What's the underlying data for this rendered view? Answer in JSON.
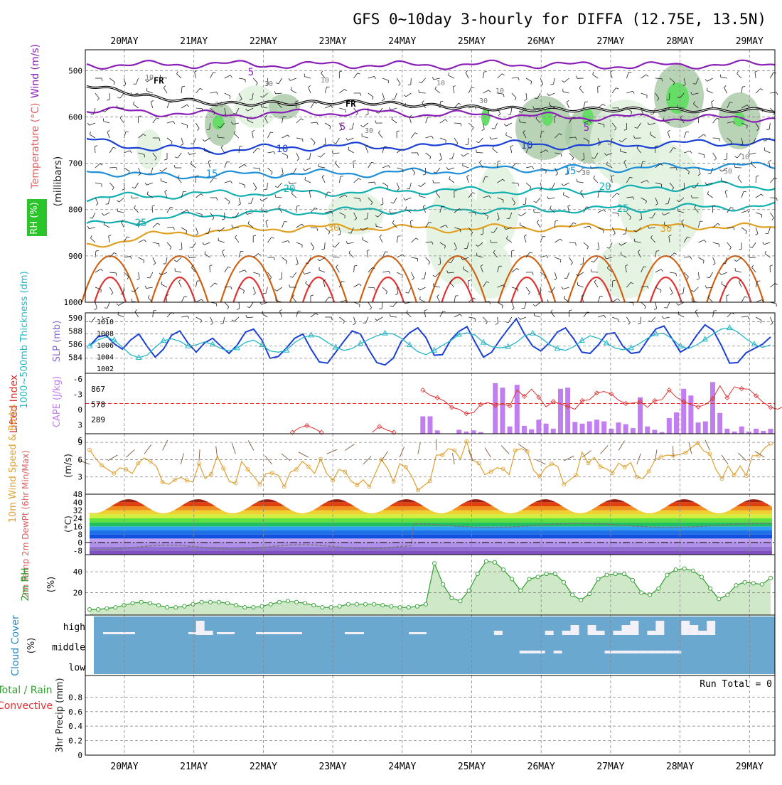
{
  "header": {
    "title": "GFS 0~10day 3-hourly for DIFFA (12.75E, 13.5N)"
  },
  "colors": {
    "frame": "#000000",
    "grid": "#888888",
    "purple": "#8a1fb8",
    "blue": "#1a3fd6",
    "lightblue": "#1e8fd8",
    "teal": "#12b0b0",
    "orange": "#e0a020",
    "darkorange": "#d06010",
    "red": "#e03030",
    "rh_light": "#dff0dc",
    "rh_mid": "#a8c8a4",
    "rh_dark": "#6f8f6c",
    "green": "#2ea02e",
    "slp_blue": "#1a3fd6",
    "thick_cyan": "#22b8c8",
    "cape_purple": "#c07ef0",
    "li_red": "#e03030",
    "wind_orange": "#e0a030",
    "dewpt": "#777777",
    "cloud_blue": "#6aa8d0",
    "cloud_white": "#f4f0f8"
  },
  "chart_data": [
    {
      "type": "line",
      "panel": "upper-air cross section",
      "x": [
        "20MAY",
        "21MAY",
        "22MAY",
        "23MAY",
        "24MAY",
        "25MAY",
        "26MAY",
        "27MAY",
        "28MAY",
        "29MAY"
      ],
      "ylabel_parts": [
        "Wind (m/s)",
        "Temperature (°C)",
        "RH (%)"
      ],
      "yunit_label": "(millibars)",
      "ylim": [
        1000,
        455
      ],
      "yticks": [
        500,
        600,
        700,
        800,
        900,
        1000
      ],
      "fr_label": "FR",
      "temp_contours": [
        {
          "label": "5",
          "level_mb": [
            488,
            487,
            486,
            488,
            487,
            489,
            486,
            488,
            490,
            487,
            486
          ]
        },
        {
          "label": "5",
          "level_mb": [
            585,
            590,
            596,
            592,
            590,
            594,
            596,
            600,
            601,
            603,
            602
          ]
        },
        {
          "label": "10",
          "level_mb": [
            650,
            668,
            672,
            665,
            663,
            665,
            658,
            662,
            660,
            656,
            655
          ]
        },
        {
          "label": "15",
          "level_mb": [
            715,
            728,
            725,
            722,
            722,
            718,
            712,
            712,
            710,
            707,
            705
          ]
        },
        {
          "label": "20",
          "level_mb": [
            775,
            770,
            765,
            763,
            762,
            758,
            760,
            760,
            756,
            748,
            750
          ]
        },
        {
          "label": "25",
          "level_mb": [
            835,
            820,
            810,
            805,
            802,
            800,
            800,
            800,
            798,
            795,
            792
          ]
        },
        {
          "label": "30",
          "level_mb": [
            880,
            855,
            845,
            840,
            838,
            842,
            840,
            838,
            840,
            835,
            840
          ]
        }
      ],
      "freezing_level_mb": [
        530,
        558,
        572,
        570,
        568,
        576,
        582,
        584,
        584,
        586,
        585
      ],
      "rh_contour_labels": [
        "10",
        "30",
        "10",
        "30",
        "30",
        "10",
        "30",
        "10",
        "30",
        "10",
        "50"
      ],
      "temp_labels": [
        "5",
        "5",
        "5",
        "10",
        "10",
        "15",
        "15",
        "20",
        "20",
        "25",
        "25",
        "30",
        "30"
      ]
    },
    {
      "type": "line",
      "panel": "thickness and SLP",
      "ylabel": "1000~500mb Thickness (dm)",
      "ylabel2": "SLP (mb)",
      "left_ticks": [
        "590",
        "588",
        "586",
        "584"
      ],
      "right_ticks": [
        "1010",
        "1008",
        "1006",
        "1004",
        "1002"
      ],
      "series": [
        {
          "name": "SLP (mb)",
          "ylim": [
            1002,
            1011
          ],
          "values": [
            1006.0,
            1007.5,
            1007.8,
            1006.4,
            1005.5,
            1007.0,
            1008.0,
            1006.0,
            1004.2,
            1005.5,
            1007.8,
            1008.5,
            1006.5,
            1005.0,
            1006.5,
            1007.3,
            1006.0,
            1004.8,
            1006.2,
            1008.3,
            1008.8,
            1007.0,
            1004.0,
            1004.3,
            1005.7,
            1007.3,
            1008.0,
            1005.5,
            1003.4,
            1003.2,
            1005.0,
            1006.8,
            1008.5,
            1008.0,
            1005.5,
            1003.3,
            1002.9,
            1004.0,
            1006.8,
            1008.2,
            1009.0,
            1007.4,
            1004.5,
            1004.6,
            1007.0,
            1008.4,
            1009.2,
            1006.6,
            1004.2,
            1005.0,
            1007.0,
            1008.8,
            1010.5,
            1008.0,
            1006.0,
            1005.2,
            1006.5,
            1008.3,
            1009.0,
            1007.2,
            1005.0,
            1004.8,
            1006.2,
            1008.0,
            1008.2,
            1006.0,
            1004.8,
            1005.0,
            1007.0,
            1008.8,
            1009.3,
            1007.2,
            1005.0,
            1005.8,
            1007.8,
            1009.5,
            1008.6,
            1006.1,
            1003.2,
            1003.3,
            1004.9,
            1005.6,
            1006.3,
            1007.5
          ]
        },
        {
          "name": "1000-500mb Thickness (dm)",
          "ylim": [
            582,
            591
          ],
          "values": [
            586.0,
            587.0,
            587.5,
            587.0,
            585.8,
            584.6,
            584.1,
            584.5,
            585.8,
            586.9,
            587.2,
            586.8,
            586.0,
            586.2,
            586.7,
            586.3,
            585.6,
            585.2,
            585.7,
            586.6,
            587.0,
            586.2,
            585.2,
            585.0,
            585.3,
            586.6,
            587.4,
            587.8,
            587.5,
            586.6,
            585.8,
            585.3,
            585.6,
            586.4,
            587.1,
            587.7,
            588.1,
            588.0,
            587.3,
            586.2,
            585.1,
            584.6,
            585.3,
            586.1,
            586.9,
            587.9,
            588.2,
            587.8,
            586.6,
            585.9,
            585.7,
            585.9,
            586.6,
            587.7,
            588.1,
            587.4,
            586.3,
            585.6,
            585.3,
            585.9,
            586.9,
            587.7,
            587.3,
            586.5,
            585.7,
            585.4,
            585.7,
            586.4,
            587.3,
            588.0,
            588.1,
            587.2,
            586.0,
            585.6,
            586.2,
            587.1,
            588.0,
            588.8,
            589.0,
            588.3,
            587.2,
            586.3,
            585.8,
            586.2
          ]
        }
      ]
    },
    {
      "type": "bar",
      "panel": "CAPE and Lifted Index",
      "ylabel": "Lifted Index",
      "ylabel2": "CAPE (J/kg)",
      "left_ticks": [
        "-6",
        "-3",
        "0",
        "3",
        "6"
      ],
      "right_ticks": [
        "867",
        "578",
        "289"
      ],
      "series": [
        {
          "name": "CAPE (J/kg)",
          "ylim": [
            0,
            1000
          ],
          "values": [
            0,
            0,
            0,
            0,
            0,
            0,
            0,
            0,
            0,
            0,
            0,
            0,
            0,
            0,
            0,
            0,
            0,
            0,
            0,
            0,
            0,
            0,
            0,
            0,
            0,
            0,
            0,
            0,
            0,
            0,
            0,
            0,
            0,
            0,
            0,
            0,
            0,
            0,
            0,
            0,
            0,
            0,
            0,
            0,
            0,
            0,
            310,
            310,
            60,
            0,
            0,
            70,
            40,
            60,
            30,
            0,
            900,
            820,
            130,
            870,
            140,
            80,
            250,
            180,
            90,
            800,
            820,
            210,
            180,
            220,
            250,
            220,
            90,
            200,
            170,
            100,
            650,
            130,
            70,
            30,
            280,
            380,
            800,
            680,
            200,
            220,
            920,
            370,
            90,
            40,
            130,
            40,
            90,
            50,
            90
          ]
        },
        {
          "name": "Lifted Index",
          "ylim": [
            6,
            -6
          ],
          "values": [
            null,
            null,
            null,
            null,
            null,
            null,
            null,
            null,
            null,
            null,
            null,
            null,
            null,
            null,
            null,
            null,
            null,
            null,
            null,
            null,
            null,
            null,
            null,
            null,
            null,
            null,
            null,
            null,
            6.0,
            5.0,
            4.6,
            5.2,
            6.0,
            null,
            null,
            null,
            null,
            null,
            null,
            6.0,
            4.8,
            5.5,
            6.0,
            null,
            null,
            null,
            -2.8,
            -1.7,
            -1.2,
            -0.5,
            0.8,
            1.2,
            2.1,
            1.9,
            0.2,
            -0.2,
            0.4,
            0.1,
            0.5,
            -2.8,
            -1.5,
            -3.0,
            -1.3,
            0.7,
            -0.4,
            0.1,
            0.6,
            1.2,
            -0.6,
            -0.8,
            -2.2,
            -2.5,
            -2.0,
            -0.7,
            0.0,
            -0.1,
            -0.4,
            0.8,
            -0.6,
            -0.8,
            -2.8,
            -1.3,
            -0.4,
            0.2,
            0.7,
            0.2,
            -1.0,
            -3.7,
            -1.2,
            -3.5,
            -3.1,
            -3.0,
            -1.6,
            -0.2,
            0.8,
            1.2,
            0.4,
            0.0,
            -1.3,
            -3.5
          ]
        }
      ]
    },
    {
      "type": "line",
      "panel": "10m Wind",
      "ylabel": "10m Wind Speed & Barbs",
      "yunit": "(m/s)",
      "ylim": [
        0,
        10.5
      ],
      "yticks": [
        3,
        6,
        9
      ],
      "series": [
        {
          "name": "10m Wind Speed (m/s)",
          "values": [
            7.7,
            6.2,
            5.0,
            4.3,
            3.6,
            4.6,
            4.3,
            3.6,
            5.4,
            6.3,
            5.7,
            4.8,
            2.1,
            1.7,
            2.5,
            2.9,
            2.4,
            2.1,
            5.3,
            2.7,
            3.5,
            6.6,
            4.5,
            2.2,
            1.9,
            5.7,
            4.3,
            3.1,
            1.7,
            3.6,
            3.7,
            3.3,
            1.3,
            3.8,
            4.3,
            5.7,
            4.8,
            3.6,
            6.1,
            3.6,
            2.4,
            4.3,
            3.9,
            2.3,
            1.6,
            2.5,
            1.3,
            3.6,
            6.0,
            4.5,
            2.2,
            5.3,
            4.7,
            3.1,
            0.7,
            1.5,
            2.3,
            6.8,
            6.8,
            7.9,
            7.6,
            6.1,
            9.2,
            5.9,
            5.4,
            3.4,
            3.9,
            4.6,
            4.4,
            3.4,
            7.6,
            7.9,
            7.4,
            4.2,
            3.1,
            4.6,
            5.3,
            4.8,
            1.7,
            2.5,
            3.3,
            7.3,
            5.4,
            6.4,
            4.8,
            4.4,
            3.7,
            5.4,
            4.7,
            5.5,
            3.0,
            2.7,
            4.0,
            6.0,
            6.5,
            6.8,
            6.7,
            6.9,
            7.2,
            8.1,
            8.9,
            7.5,
            7.0,
            4.3,
            2.7,
            4.9,
            3.3,
            4.9,
            3.2,
            6.7,
            6.7,
            8.0,
            8.8
          ]
        }
      ]
    },
    {
      "type": "area",
      "panel": "2m Temperature",
      "ylabel": "2m Temp 2m DewPt (6hr Min/Max)",
      "yunit": "(°C)",
      "ylim": [
        -12,
        48
      ],
      "yticks": [
        "48",
        "40",
        "32",
        "24",
        "16",
        "8",
        "0",
        "-8"
      ],
      "temp_min": 29,
      "temp_max": 43,
      "dewpt_before_24may": -5,
      "dewpt_after_24may": 17
    },
    {
      "type": "area",
      "panel": "2m Relative Humidity",
      "ylabel": "2m RH",
      "yunit": "(%)",
      "ylim": [
        0,
        55
      ],
      "yticks": [
        20,
        40
      ],
      "series": [
        {
          "name": "2m RH (%)",
          "values": [
            4,
            4,
            5,
            6,
            8,
            10,
            11,
            10,
            8,
            6,
            6,
            7,
            9,
            11,
            11,
            11,
            10,
            8,
            6,
            6,
            7,
            9,
            11,
            12,
            11,
            10,
            8,
            6,
            6,
            7,
            9,
            9,
            9,
            9,
            8,
            7,
            6,
            6,
            7,
            9,
            48,
            28,
            15,
            12,
            22,
            38,
            50,
            49,
            42,
            33,
            22,
            33,
            35,
            38,
            38,
            30,
            18,
            13,
            19,
            33,
            37,
            38,
            38,
            32,
            20,
            18,
            24,
            37,
            42,
            43,
            41,
            35,
            24,
            14,
            18,
            27,
            30,
            29,
            28,
            34
          ]
        }
      ]
    },
    {
      "type": "bar",
      "panel": "Cloud Cover",
      "ylabel": "Cloud Cover",
      "yunit": "(%)",
      "levels": [
        "high",
        "middle",
        "low"
      ],
      "high_clear_columns": [
        12,
        13,
        47,
        53,
        55,
        56,
        58,
        59,
        61,
        62,
        63,
        65,
        66,
        69,
        70,
        71,
        72
      ],
      "middle_clear_columns": [
        50,
        51,
        52,
        54,
        60,
        61,
        62,
        63,
        64,
        65,
        66,
        67,
        68
      ]
    },
    {
      "type": "bar",
      "panel": "Precipitation",
      "ylabel": "3hr Precip (mm)",
      "ylabel_extra": "Total / Rain",
      "ylabel_extra2": "Convective",
      "ylim": [
        0,
        1
      ],
      "yticks": [
        "0.8",
        "0.6",
        "0.4",
        "0.2",
        "0"
      ],
      "run_total": "Run Total = 0",
      "values": []
    }
  ]
}
